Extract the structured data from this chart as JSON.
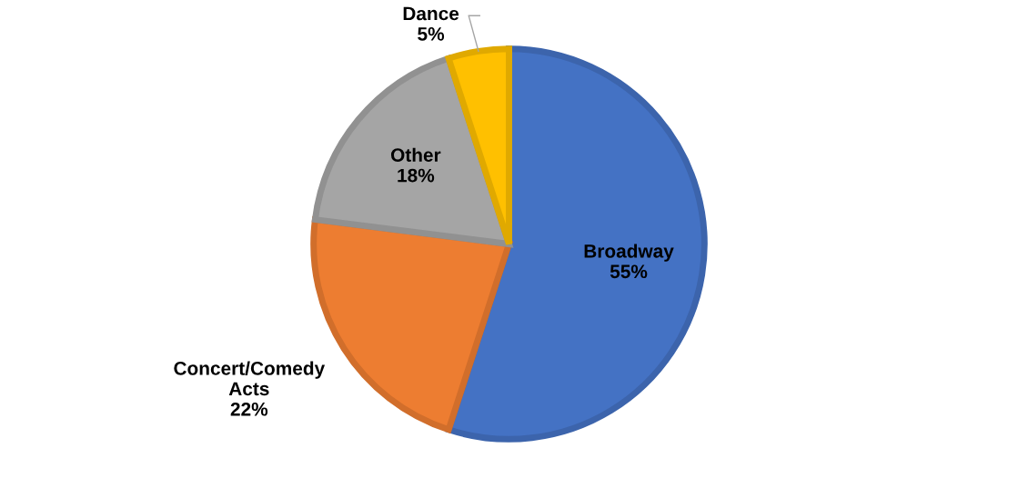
{
  "chart_data": {
    "type": "pie",
    "categories": [
      "Broadway",
      "Concert/Comedy Acts",
      "Other",
      "Dance"
    ],
    "values": [
      55,
      22,
      18,
      5
    ],
    "value_labels": [
      "55%",
      "22%",
      "18%",
      "5%"
    ],
    "colors": [
      "#4472c4",
      "#ed7d31",
      "#a5a5a5",
      "#ffc000"
    ]
  }
}
